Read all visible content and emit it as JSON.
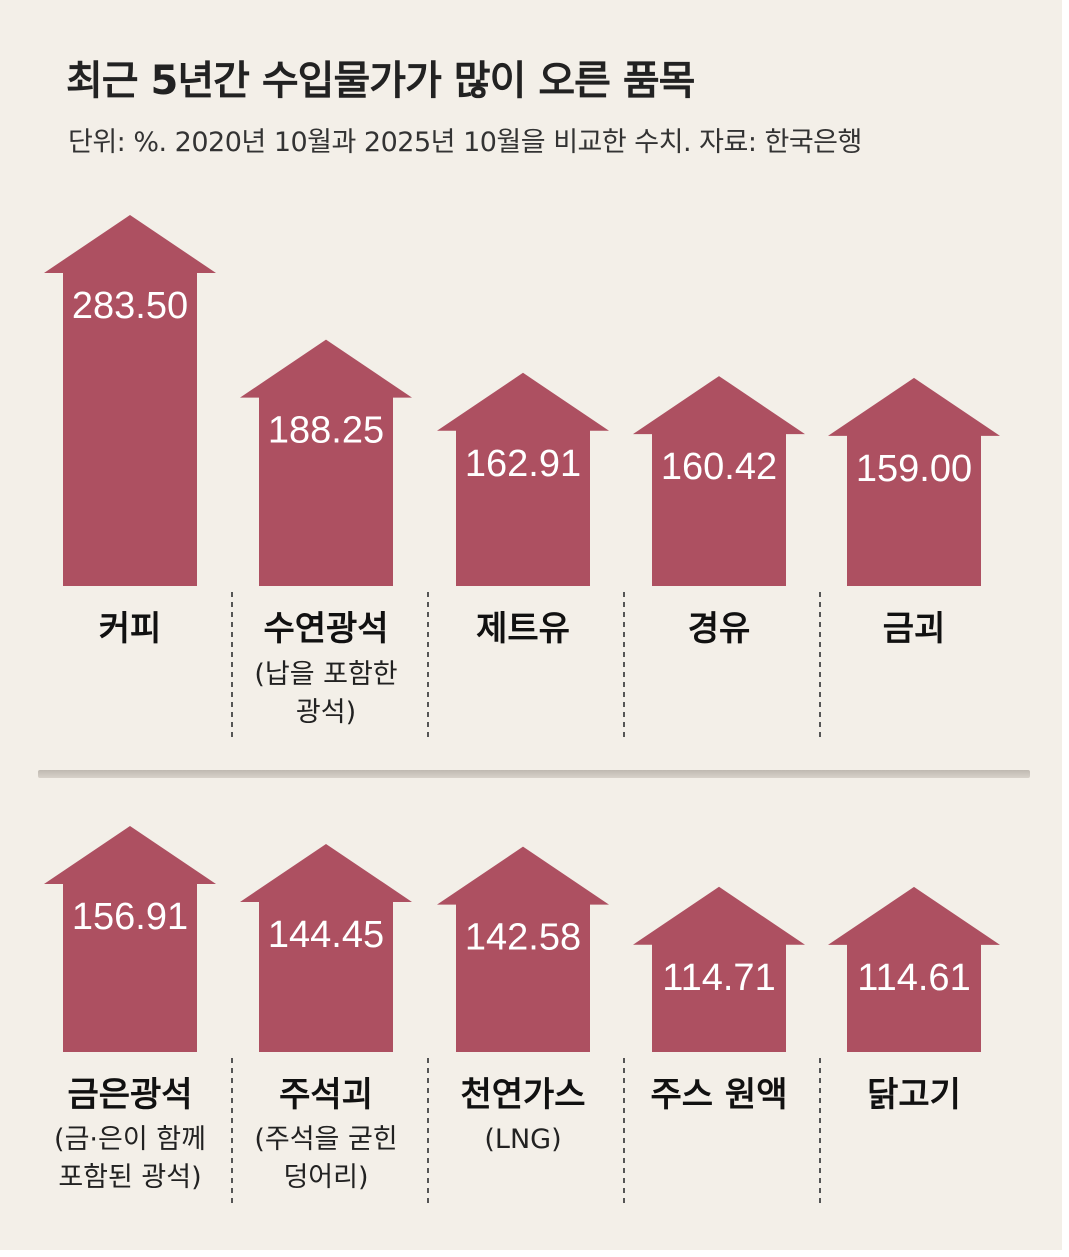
{
  "title": "최근 5년간 수입물가가 많이 오른 품목",
  "subtitle": "단위: %. 2020년 10월과 2025년 10월을 비교한 수치. 자료: 한국은행",
  "colors": {
    "background": "#f3efe8",
    "arrow": "#ad5061",
    "value_text": "#ffffff",
    "divider": "#c9c3bb"
  },
  "chart_data": [
    {
      "type": "bar",
      "style": "upward arrows",
      "unit": "%",
      "categories": [
        "커피",
        "수연광석",
        "제트유",
        "경유",
        "금괴"
      ],
      "notes": [
        "",
        "(납을 포함한|광석)",
        "",
        "",
        ""
      ],
      "values": [
        283.5,
        188.25,
        162.91,
        160.42,
        159.0
      ]
    },
    {
      "type": "bar",
      "style": "upward arrows",
      "unit": "%",
      "categories": [
        "금은광석",
        "주석괴",
        "천연가스",
        "주스 원액",
        "닭고기"
      ],
      "notes": [
        "(금·은이 함께|포함된 광석)",
        "(주석을 굳힌|덩어리)",
        "(LNG)",
        "",
        ""
      ],
      "values": [
        156.91,
        144.45,
        142.58,
        114.71,
        114.61
      ]
    }
  ]
}
